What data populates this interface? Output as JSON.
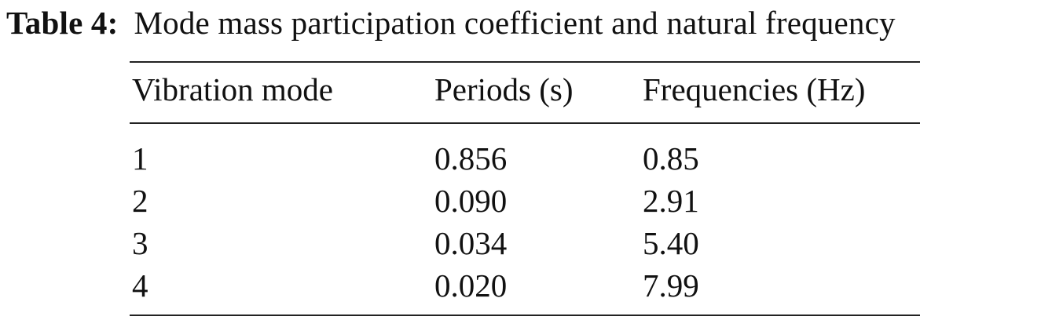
{
  "caption": {
    "label": "Table 4:",
    "text": "Mode mass participation coefficient and natural frequency"
  },
  "table": {
    "headers": [
      "Vibration mode",
      "Periods (s)",
      "Frequencies (Hz)"
    ],
    "rows": [
      [
        "1",
        "0.856",
        "0.85"
      ],
      [
        "2",
        "0.090",
        "2.91"
      ],
      [
        "3",
        "0.034",
        "5.40"
      ],
      [
        "4",
        "0.020",
        "7.99"
      ]
    ]
  }
}
